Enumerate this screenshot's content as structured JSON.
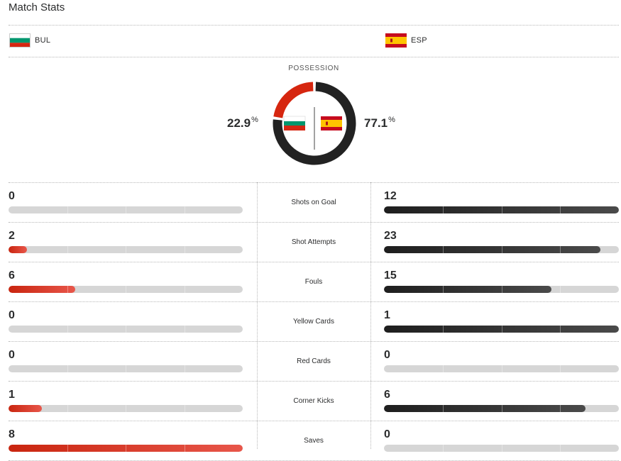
{
  "title": "Match Stats",
  "teams": {
    "home": {
      "abbr": "BUL",
      "flag_colors": [
        "#ffffff",
        "#00966e",
        "#d62612"
      ]
    },
    "away": {
      "abbr": "ESP",
      "flag_colors": [
        "#c60b1e",
        "#ffc400",
        "#c60b1e"
      ]
    }
  },
  "possession": {
    "label": "POSSESSION",
    "home_value": "22.9",
    "away_value": "77.1",
    "unit": "%",
    "home_fraction": 0.229,
    "away_fraction": 0.771,
    "home_color": "#d6260f",
    "away_color": "#222222"
  },
  "stats": [
    {
      "label": "Shots on Goal",
      "home": "0",
      "away": "12"
    },
    {
      "label": "Shot Attempts",
      "home": "2",
      "away": "23"
    },
    {
      "label": "Fouls",
      "home": "6",
      "away": "15"
    },
    {
      "label": "Yellow Cards",
      "home": "0",
      "away": "1"
    },
    {
      "label": "Red Cards",
      "home": "0",
      "away": "0"
    },
    {
      "label": "Corner Kicks",
      "home": "1",
      "away": "6"
    },
    {
      "label": "Saves",
      "home": "8",
      "away": "0"
    }
  ]
}
